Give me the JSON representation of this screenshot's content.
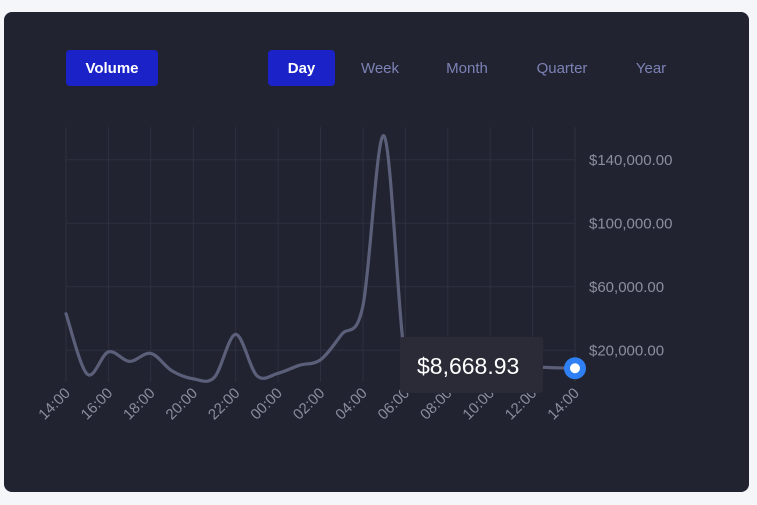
{
  "controls": {
    "metric_label": "Volume",
    "periods": [
      {
        "label": "Day",
        "active": true
      },
      {
        "label": "Week",
        "active": false
      },
      {
        "label": "Month",
        "active": false
      },
      {
        "label": "Quarter",
        "active": false
      },
      {
        "label": "Year",
        "active": false
      }
    ]
  },
  "tooltip": {
    "value": "$8,668.93"
  },
  "colors": {
    "background": "#212330",
    "line": "#5b5f79",
    "grid": "#2e3040",
    "accent": "#1a22c8",
    "marker": "#2f7ff5",
    "inactive_text": "#7d82b6",
    "tick_text": "#8b8e9f"
  },
  "chart_data": {
    "type": "line",
    "ylim": [
      0,
      155000
    ],
    "y_ticks": [
      20000,
      60000,
      100000,
      140000
    ],
    "y_tick_labels": [
      "$20,000.00",
      "$60,000.00",
      "$100,000.00",
      "$140,000.00"
    ],
    "x_tick_labels": [
      "14:00",
      "16:00",
      "18:00",
      "20:00",
      "22:00",
      "00:00",
      "02:00",
      "04:00",
      "06:00",
      "08:00",
      "10:00",
      "12:00",
      "14:00"
    ],
    "grid": true,
    "legend": "none",
    "x": [
      0,
      0.5,
      1,
      1.5,
      2,
      2.5,
      3,
      3.5,
      4,
      4.5,
      5,
      5.5,
      6,
      6.5,
      7,
      7.5,
      8,
      8.5,
      9,
      9.5,
      10,
      10.5,
      11,
      11.5,
      12
    ],
    "series": [
      {
        "values": [
          43000,
          5000,
          19000,
          13000,
          18000,
          7000,
          2000,
          3000,
          30000,
          4000,
          5500,
          10500,
          14000,
          30000,
          48000,
          155000,
          14000,
          11000,
          10500,
          10000,
          10000,
          9800,
          9500,
          9000,
          8668.93
        ]
      }
    ],
    "marker_value": 8668.93
  }
}
